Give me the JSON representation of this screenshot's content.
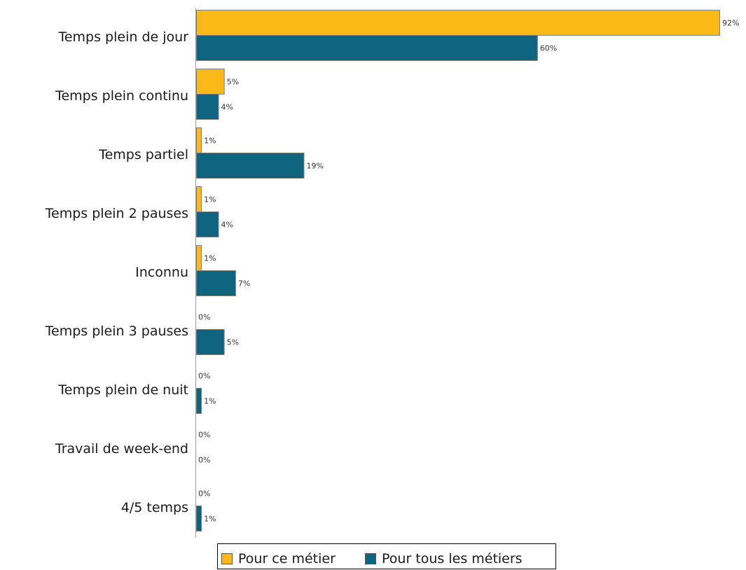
{
  "chart_data": {
    "type": "bar",
    "orientation": "horizontal",
    "categories": [
      "Temps plein de jour",
      "Temps plein continu",
      "Temps partiel",
      "Temps plein 2 pauses",
      "Inconnu",
      "Temps plein 3 pauses",
      "Temps plein de nuit",
      "Travail de week-end",
      "4/5 temps"
    ],
    "series": [
      {
        "name": "Pour ce métier",
        "color": "#fbb917",
        "values": [
          92,
          5,
          1,
          1,
          1,
          0,
          0,
          0,
          0
        ],
        "labels": [
          "92%",
          "5%",
          "1%",
          "1%",
          "1%",
          "0%",
          "0%",
          "0%",
          "0%"
        ]
      },
      {
        "name": "Pour tous les métiers",
        "color": "#0f6480",
        "values": [
          60,
          4,
          19,
          4,
          7,
          5,
          1,
          0,
          1
        ],
        "labels": [
          "60%",
          "4%",
          "19%",
          "4%",
          "7%",
          "5%",
          "1%",
          "0%",
          "1%"
        ]
      }
    ],
    "xlim": [
      0,
      92
    ],
    "grid": false,
    "legend_position": "bottom"
  }
}
